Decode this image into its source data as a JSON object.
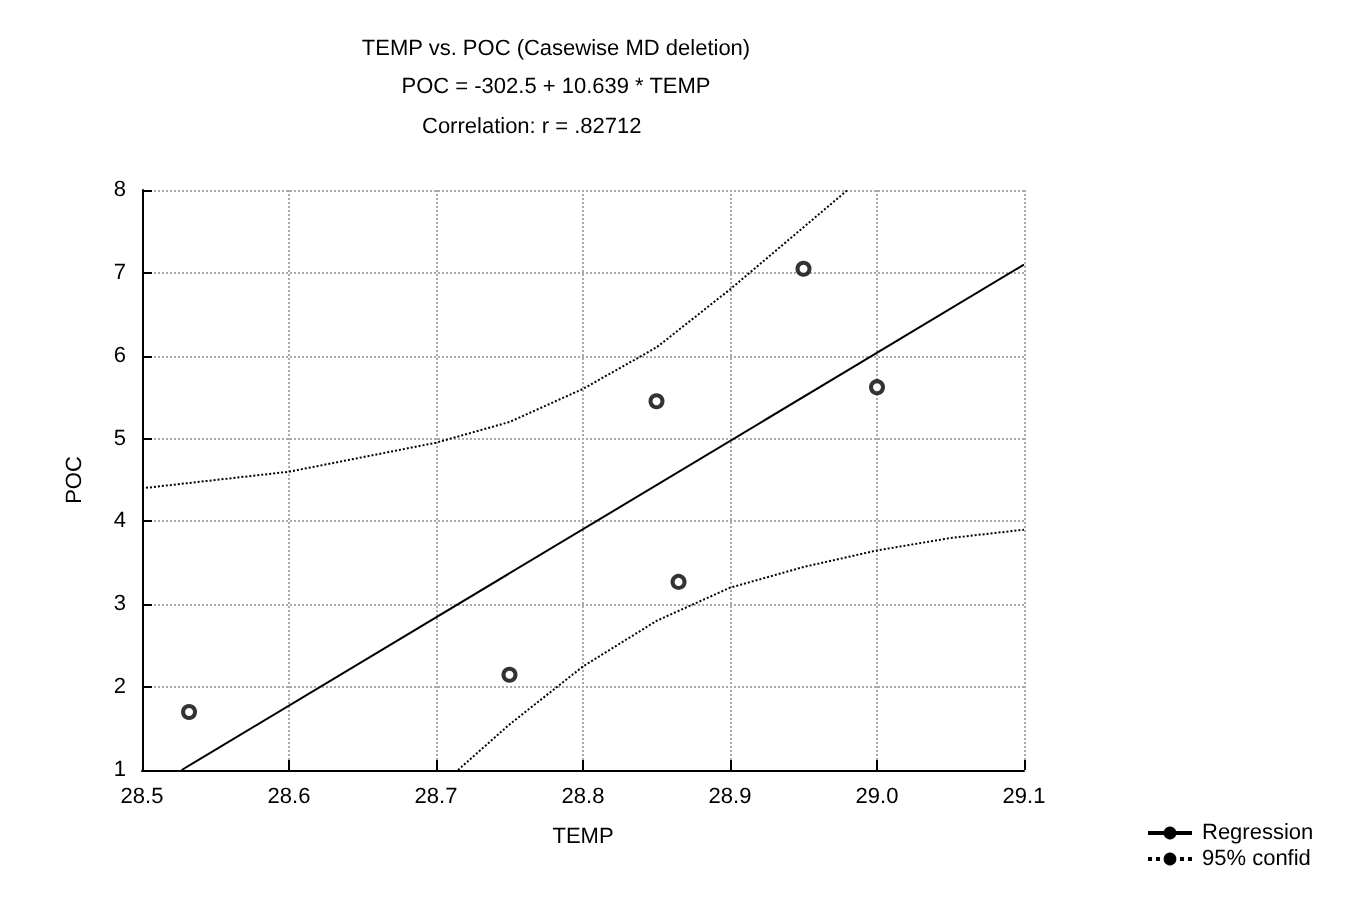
{
  "chart_data": {
    "type": "scatter",
    "title": "TEMP vs. POC (Casewise MD deletion)",
    "subtitle": "POC = -302.5 + 10.639 * TEMP",
    "annotations": [
      "Correlation: r = .82712"
    ],
    "xlabel": "TEMP",
    "ylabel": "POC",
    "xlim": [
      28.5,
      29.1
    ],
    "xticks": [
      28.5,
      28.6,
      28.7,
      28.8,
      28.9,
      {
        "value": 29.0,
        "label": "29.0"
      },
      29.1
    ],
    "ylim": [
      1,
      8
    ],
    "yticks": [
      1,
      2,
      3,
      4,
      5,
      6,
      7,
      8
    ],
    "grid": true,
    "legend": "bottom right",
    "marker": "circle",
    "series": [
      {
        "color": "#000000",
        "x": [
          28.532,
          28.75,
          28.85,
          28.865,
          28.95,
          29.0
        ],
        "values": [
          1.7,
          2.15,
          5.45,
          3.27,
          7.05,
          5.62
        ]
      },
      {
        "type": "line",
        "name": "Regression",
        "color": "#000000",
        "marker": "none",
        "line_style": "solid",
        "x": [
          28.527,
          29.1
        ],
        "values": [
          1,
          7.1
        ]
      },
      {
        "type": "line",
        "name": "95% confid",
        "color": "#000000",
        "marker": "none",
        "line_style": "dotted",
        "x": [
          28.5,
          28.6,
          28.7,
          28.75,
          28.8,
          28.85,
          28.9,
          28.95,
          28.98
        ],
        "values": [
          4.4,
          4.6,
          4.95,
          5.2,
          5.6,
          6.1,
          6.8,
          7.55,
          8.0
        ]
      },
      {
        "type": "line",
        "color": "#000000",
        "marker": "none",
        "line_style": "dotted",
        "x": [
          28.715,
          28.75,
          28.8,
          28.85,
          28.9,
          28.95,
          29.0,
          29.05,
          29.1
        ],
        "values": [
          1.0,
          1.55,
          2.25,
          2.8,
          3.2,
          3.45,
          3.65,
          3.8,
          3.9
        ]
      }
    ]
  }
}
